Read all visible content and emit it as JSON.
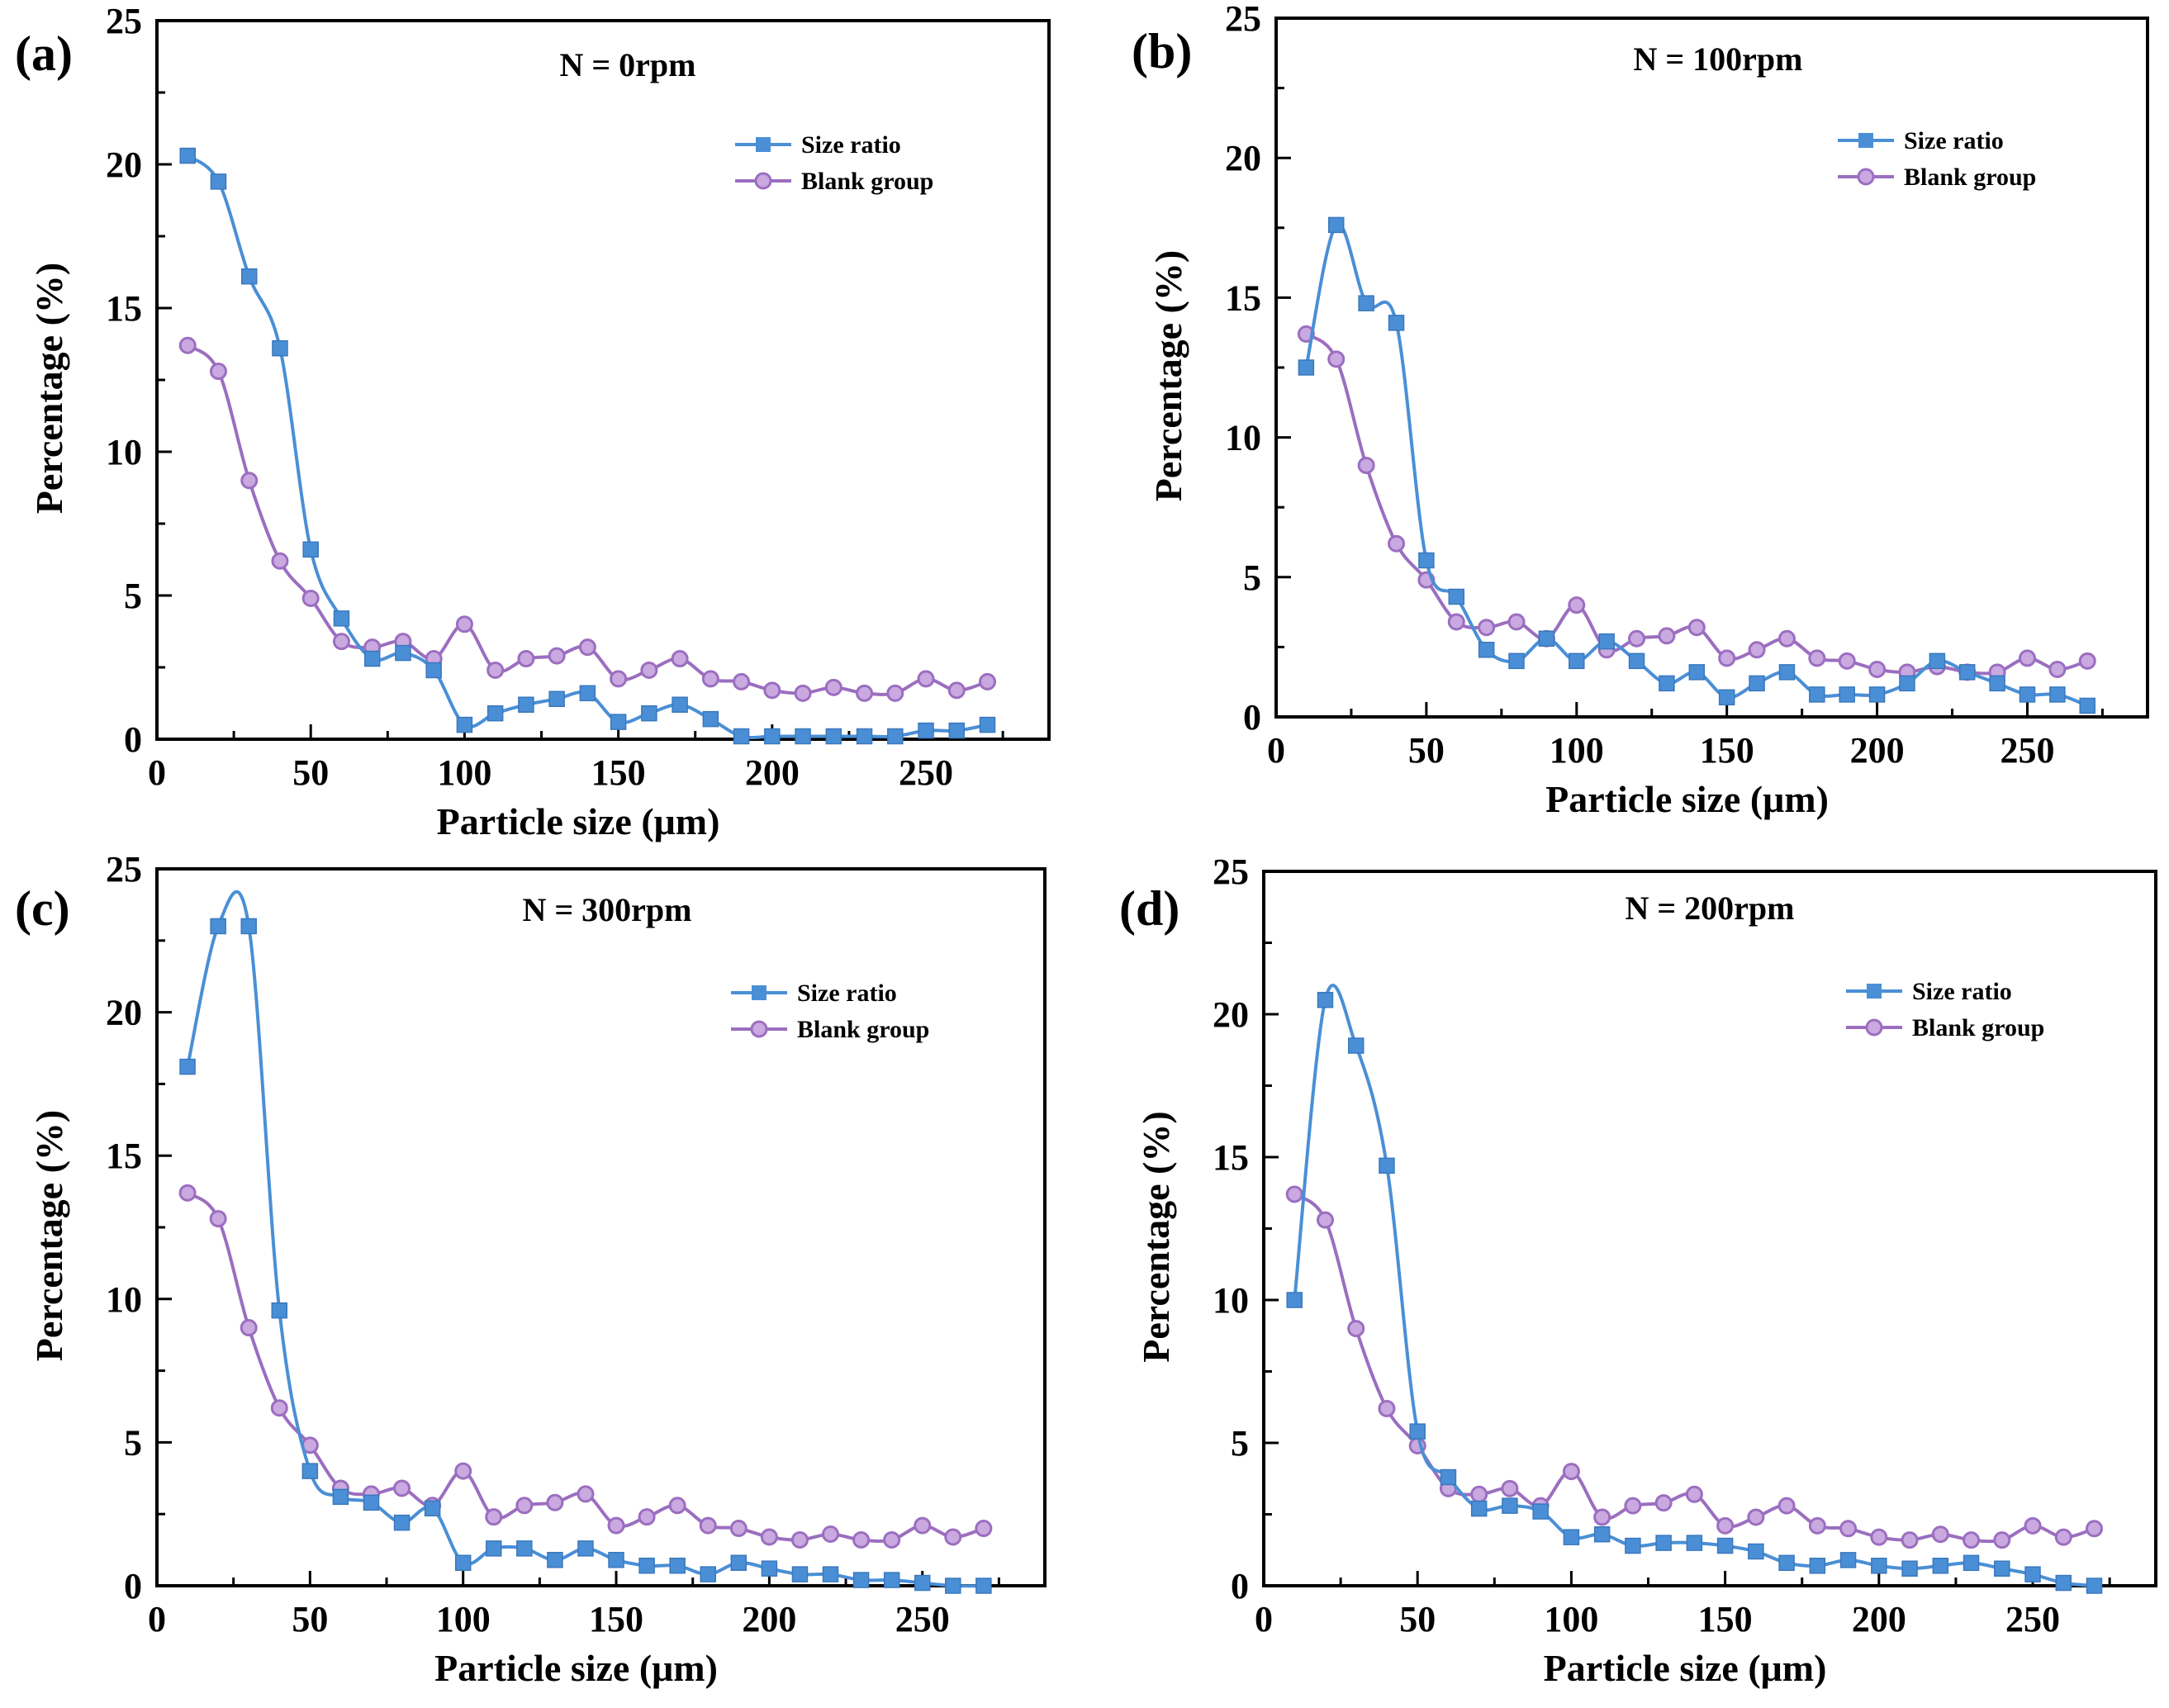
{
  "chart_data": [
    {
      "type": "line",
      "panel_label": "(a)",
      "title": "N = 0rpm",
      "xlabel": "Particle size (μm)",
      "ylabel": "Percentage (%)",
      "xlim": [
        0,
        290
      ],
      "ylim": [
        0,
        25
      ],
      "xticks": [
        "0",
        "50",
        "100",
        "150",
        "200",
        "250"
      ],
      "yticks": [
        "0",
        "5",
        "10",
        "15",
        "20",
        "25"
      ],
      "legend_position": "top-right",
      "grid": false,
      "x": [
        10,
        20,
        30,
        40,
        50,
        60,
        70,
        80,
        90,
        100,
        110,
        120,
        130,
        140,
        150,
        160,
        170,
        180,
        190,
        200,
        210,
        220,
        230,
        240,
        250,
        260,
        270
      ],
      "series": [
        {
          "name": "Size ratio",
          "color": "#4a8fd6",
          "marker": "square",
          "values": [
            20.3,
            19.4,
            16.1,
            13.6,
            6.6,
            4.2,
            2.8,
            3.0,
            2.4,
            0.5,
            0.9,
            1.2,
            1.4,
            1.6,
            0.6,
            0.9,
            1.2,
            0.7,
            0.1,
            0.1,
            0.1,
            0.1,
            0.1,
            0.1,
            0.3,
            0.3,
            0.5
          ]
        },
        {
          "name": "Blank group",
          "color": "#9b6ec0",
          "marker": "circle",
          "values": [
            13.7,
            12.8,
            9.0,
            6.2,
            4.9,
            3.4,
            3.2,
            3.4,
            2.8,
            4.0,
            2.4,
            2.8,
            2.9,
            3.2,
            2.1,
            2.4,
            2.8,
            2.1,
            2.0,
            1.7,
            1.6,
            1.8,
            1.6,
            1.6,
            2.1,
            1.7,
            2.0
          ]
        }
      ]
    },
    {
      "type": "line",
      "panel_label": "(b)",
      "title": "N = 100rpm",
      "xlabel": "Particle size (μm)",
      "ylabel": "Percentage (%)",
      "xlim": [
        0,
        290
      ],
      "ylim": [
        0,
        25
      ],
      "xticks": [
        "0",
        "50",
        "100",
        "150",
        "200",
        "250"
      ],
      "yticks": [
        "0",
        "5",
        "10",
        "15",
        "20",
        "25"
      ],
      "legend_position": "top-right",
      "grid": false,
      "x": [
        10,
        20,
        30,
        40,
        50,
        60,
        70,
        80,
        90,
        100,
        110,
        120,
        130,
        140,
        150,
        160,
        170,
        180,
        190,
        200,
        210,
        220,
        230,
        240,
        250,
        260,
        270
      ],
      "series": [
        {
          "name": "Size ratio",
          "color": "#4a8fd6",
          "marker": "square",
          "values": [
            12.5,
            17.6,
            14.8,
            14.1,
            5.6,
            4.3,
            2.4,
            2.0,
            2.8,
            2.0,
            2.7,
            2.0,
            1.2,
            1.6,
            0.7,
            1.2,
            1.6,
            0.8,
            0.8,
            0.8,
            1.2,
            2.0,
            1.6,
            1.2,
            0.8,
            0.8,
            0.4
          ]
        },
        {
          "name": "Blank group",
          "color": "#9b6ec0",
          "marker": "circle",
          "values": [
            13.7,
            12.8,
            9.0,
            6.2,
            4.9,
            3.4,
            3.2,
            3.4,
            2.8,
            4.0,
            2.4,
            2.8,
            2.9,
            3.2,
            2.1,
            2.4,
            2.8,
            2.1,
            2.0,
            1.7,
            1.6,
            1.8,
            1.6,
            1.6,
            2.1,
            1.7,
            2.0
          ]
        }
      ]
    },
    {
      "type": "line",
      "panel_label": "(c)",
      "title": "N = 300rpm",
      "xlabel": "Particle size (μm)",
      "ylabel": "Percentage (%)",
      "xlim": [
        0,
        290
      ],
      "ylim": [
        0,
        25
      ],
      "xticks": [
        "0",
        "50",
        "100",
        "150",
        "200",
        "250"
      ],
      "yticks": [
        "0",
        "5",
        "10",
        "15",
        "20",
        "25"
      ],
      "legend_position": "top-right",
      "grid": false,
      "x": [
        10,
        20,
        30,
        40,
        50,
        60,
        70,
        80,
        90,
        100,
        110,
        120,
        130,
        140,
        150,
        160,
        170,
        180,
        190,
        200,
        210,
        220,
        230,
        240,
        250,
        260,
        270
      ],
      "series": [
        {
          "name": "Size ratio",
          "color": "#4a8fd6",
          "marker": "square",
          "values": [
            18.1,
            23.0,
            23.0,
            9.6,
            4.0,
            3.1,
            2.9,
            2.2,
            2.7,
            0.8,
            1.3,
            1.3,
            0.9,
            1.3,
            0.9,
            0.7,
            0.7,
            0.4,
            0.8,
            0.6,
            0.4,
            0.4,
            0.2,
            0.2,
            0.1,
            0.0,
            0.0
          ]
        },
        {
          "name": "Blank group",
          "color": "#9b6ec0",
          "marker": "circle",
          "values": [
            13.7,
            12.8,
            9.0,
            6.2,
            4.9,
            3.4,
            3.2,
            3.4,
            2.8,
            4.0,
            2.4,
            2.8,
            2.9,
            3.2,
            2.1,
            2.4,
            2.8,
            2.1,
            2.0,
            1.7,
            1.6,
            1.8,
            1.6,
            1.6,
            2.1,
            1.7,
            2.0
          ]
        }
      ]
    },
    {
      "type": "line",
      "panel_label": "(d)",
      "title": "N = 200rpm",
      "xlabel": "Particle size (μm)",
      "ylabel": "Percentage (%)",
      "xlim": [
        0,
        290
      ],
      "ylim": [
        0,
        25
      ],
      "xticks": [
        "0",
        "50",
        "100",
        "150",
        "200",
        "250"
      ],
      "yticks": [
        "0",
        "5",
        "10",
        "15",
        "20",
        "25"
      ],
      "legend_position": "top-right",
      "grid": false,
      "x": [
        10,
        20,
        30,
        40,
        50,
        60,
        70,
        80,
        90,
        100,
        110,
        120,
        130,
        140,
        150,
        160,
        170,
        180,
        190,
        200,
        210,
        220,
        230,
        240,
        250,
        260,
        270
      ],
      "series": [
        {
          "name": "Size ratio",
          "color": "#4a8fd6",
          "marker": "square",
          "values": [
            10.0,
            20.5,
            18.9,
            14.7,
            5.4,
            3.8,
            2.7,
            2.8,
            2.6,
            1.7,
            1.8,
            1.4,
            1.5,
            1.5,
            1.4,
            1.2,
            0.8,
            0.7,
            0.9,
            0.7,
            0.6,
            0.7,
            0.8,
            0.6,
            0.4,
            0.1,
            0.0
          ]
        },
        {
          "name": "Blank group",
          "color": "#9b6ec0",
          "marker": "circle",
          "values": [
            13.7,
            12.8,
            9.0,
            6.2,
            4.9,
            3.4,
            3.2,
            3.4,
            2.8,
            4.0,
            2.4,
            2.8,
            2.9,
            3.2,
            2.1,
            2.4,
            2.8,
            2.1,
            2.0,
            1.7,
            1.6,
            1.8,
            1.6,
            1.6,
            2.1,
            1.7,
            2.0
          ]
        }
      ]
    }
  ]
}
